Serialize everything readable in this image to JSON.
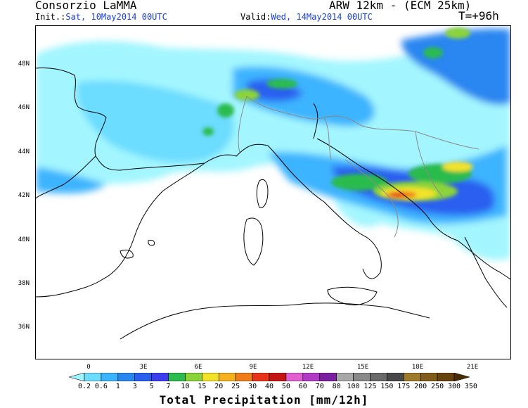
{
  "header": {
    "org": "Consorzio LaMMA",
    "model": "ARW 12km - (ECM 25km)",
    "init_label": "Init.:",
    "init_value": "Sat, 10May2014 00UTC",
    "valid_label": "Valid:",
    "valid_value": "Wed, 14May2014 00UTC",
    "lead": "T=+96h"
  },
  "map": {
    "lat_labels": [
      "48N",
      "46N",
      "44N",
      "42N",
      "40N",
      "38N",
      "36N"
    ],
    "lon_labels": [
      "0",
      "3E",
      "6E",
      "9E",
      "12E",
      "15E",
      "18E",
      "21E"
    ]
  },
  "legend": {
    "title": "Total Precipitation [mm/12h]",
    "values": [
      "0.2",
      "0.6",
      "1",
      "3",
      "5",
      "7",
      "10",
      "15",
      "20",
      "25",
      "30",
      "40",
      "50",
      "60",
      "70",
      "80",
      "100",
      "125",
      "150",
      "175",
      "200",
      "250",
      "300",
      "350"
    ],
    "colors": [
      "#9ef5ff",
      "#6cdcff",
      "#3cb4ff",
      "#2a86f0",
      "#2a5ef0",
      "#3d3df0",
      "#2bbb4e",
      "#8bd43a",
      "#f2e22a",
      "#f5b21e",
      "#f17d1a",
      "#e8341a",
      "#c41414",
      "#e15fd0",
      "#b03ac4",
      "#7a1fa0",
      "#a8a8a8",
      "#8a8a8a",
      "#6a6a6a",
      "#484848",
      "#9e7a2a",
      "#825c1a",
      "#66430f",
      "#4a2d06"
    ],
    "land_color": "#ffffff",
    "coast_color": "#000000",
    "border_color": "#8a8a8a"
  }
}
